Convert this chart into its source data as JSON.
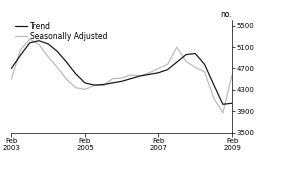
{
  "ylabel": "no.",
  "ylim": [
    3500,
    5600
  ],
  "yticks": [
    3500,
    3900,
    4300,
    4700,
    5100,
    5500
  ],
  "xtick_labels": [
    "Feb\n2003",
    "Feb\n2005",
    "Feb\n2007",
    "Feb\n2009"
  ],
  "xtick_positions": [
    0,
    24,
    48,
    72
  ],
  "legend_entries": [
    "Trend",
    "Seasonally Adjusted"
  ],
  "trend_color": "#1a1a1a",
  "seasonal_color": "#bbbbbb",
  "trend_linewidth": 0.9,
  "seasonal_linewidth": 0.9,
  "background_color": "#ffffff",
  "trend_x": [
    0,
    3,
    6,
    9,
    12,
    15,
    18,
    21,
    24,
    27,
    30,
    33,
    36,
    39,
    42,
    45,
    48,
    51,
    54,
    57,
    60,
    63,
    66,
    69,
    72
  ],
  "trend_y": [
    4700,
    4950,
    5180,
    5220,
    5160,
    5020,
    4820,
    4600,
    4430,
    4390,
    4400,
    4430,
    4460,
    4510,
    4560,
    4590,
    4620,
    4680,
    4820,
    4960,
    4980,
    4780,
    4400,
    4030,
    4050
  ],
  "seasonal_x": [
    0,
    3,
    6,
    9,
    12,
    15,
    18,
    21,
    24,
    27,
    30,
    33,
    36,
    39,
    42,
    45,
    48,
    51,
    54,
    57,
    60,
    63,
    66,
    69,
    72
  ],
  "seasonal_y": [
    4500,
    5050,
    5250,
    5150,
    4920,
    4720,
    4500,
    4340,
    4310,
    4380,
    4380,
    4510,
    4520,
    4580,
    4560,
    4620,
    4700,
    4780,
    5100,
    4830,
    4720,
    4640,
    4150,
    3870,
    4580
  ]
}
